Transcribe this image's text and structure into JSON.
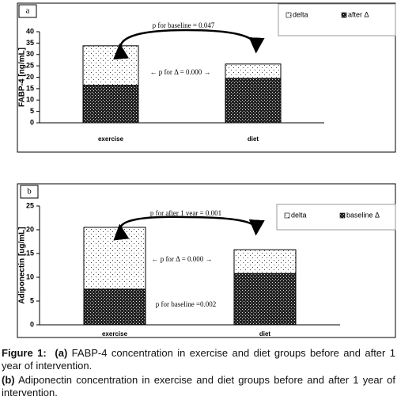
{
  "chart_data": [
    {
      "type": "stacked-bar",
      "panel": "a",
      "y_label": "FABP-4 [ng/mL]",
      "categories": [
        "exercise",
        "diet"
      ],
      "series": [
        {
          "name": "after  Δ",
          "values": [
            16.5,
            19.5
          ]
        },
        {
          "name": "delta",
          "values": [
            17.3,
            6.3
          ]
        }
      ],
      "ylim": [
        0,
        40
      ],
      "yticks": [
        0,
        5,
        10,
        15,
        20,
        25,
        30,
        35,
        40
      ],
      "annotations": [
        "p for baseline = 0.047",
        "← p for Δ = 0.000 →"
      ]
    },
    {
      "type": "stacked-bar",
      "panel": "b",
      "y_label": "Adiponectin [ug/mL]",
      "categories": [
        "exercise",
        "diet"
      ],
      "series": [
        {
          "name": "baseline  Δ",
          "values": [
            7.5,
            10.8
          ]
        },
        {
          "name": "delta",
          "values": [
            13.0,
            5.0
          ]
        }
      ],
      "ylim": [
        0,
        25
      ],
      "yticks": [
        0,
        5,
        10,
        15,
        20,
        25
      ],
      "annotations": [
        "p for after 1 year = 0.001",
        "← p for Δ = 0.000 →",
        "p for baseline =0.002"
      ]
    }
  ],
  "caption": {
    "label": "Figure 1:",
    "a": {
      "tag": "(a)",
      "text": "FABP-4 concentration in exercise and diet groups before and after 1 year of intervention."
    },
    "b": {
      "tag": "(b)",
      "text": "Adiponectin concentration in exercise and diet groups before and after 1 year of intervention."
    }
  }
}
